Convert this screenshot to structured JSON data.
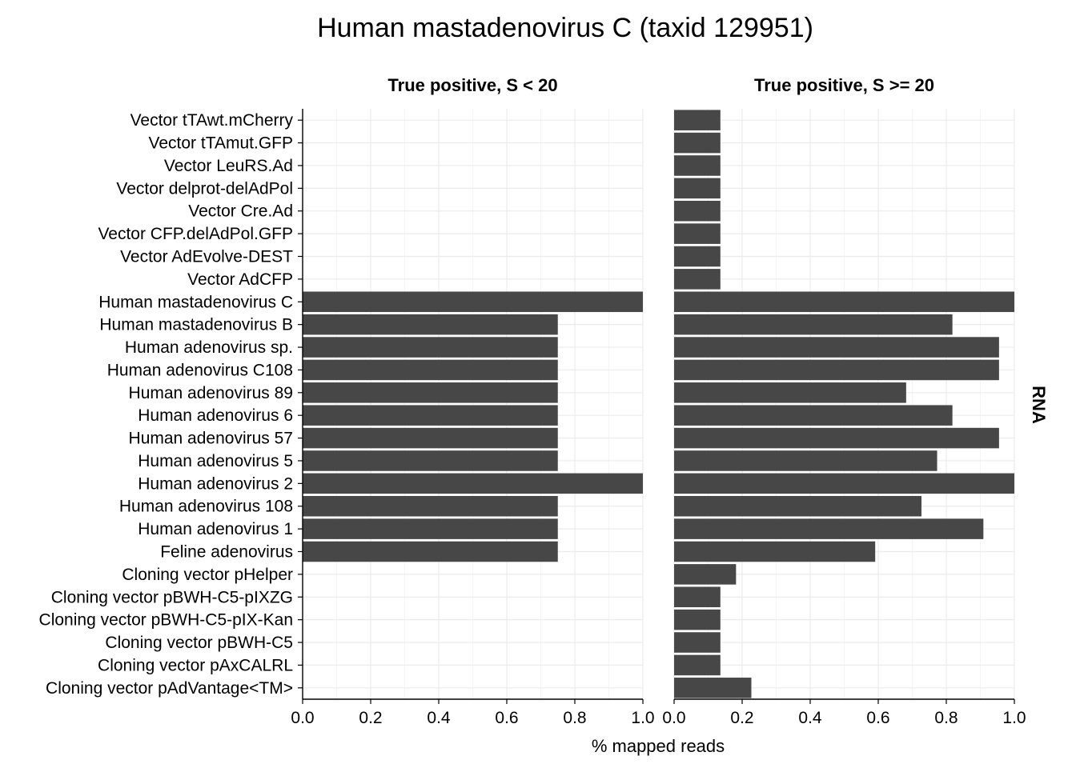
{
  "chart_data": {
    "type": "bar",
    "orientation": "horizontal",
    "title": "Human mastadenovirus C (taxid 129951)",
    "xlabel": "% mapped reads",
    "ylabel": "",
    "strip_label": "RNA",
    "xlim": [
      0,
      1
    ],
    "x_ticks": [
      "0.0",
      "0.2",
      "0.4",
      "0.6",
      "0.8",
      "1.0"
    ],
    "grid": true,
    "categories": [
      "Vector tTAwt.mCherry",
      "Vector tTAmut.GFP",
      "Vector LeuRS.Ad",
      "Vector delprot-delAdPol",
      "Vector Cre.Ad",
      "Vector CFP.delAdPol.GFP",
      "Vector AdEvolve-DEST",
      "Vector AdCFP",
      "Human mastadenovirus C",
      "Human mastadenovirus B",
      "Human adenovirus sp.",
      "Human adenovirus C108",
      "Human adenovirus 89",
      "Human adenovirus 6",
      "Human adenovirus 57",
      "Human adenovirus 5",
      "Human adenovirus 2",
      "Human adenovirus 108",
      "Human adenovirus 1",
      "Feline adenovirus",
      "Cloning vector pHelper",
      "Cloning vector pBWH-C5-pIXZG",
      "Cloning vector pBWH-C5-pIX-Kan",
      "Cloning vector pBWH-C5",
      "Cloning vector pAxCALRL",
      "Cloning vector pAdVantage<TM>"
    ],
    "series": [
      {
        "name": "True positive, S < 20",
        "values": [
          0,
          0,
          0,
          0,
          0,
          0,
          0,
          0,
          1.0,
          0.75,
          0.75,
          0.75,
          0.75,
          0.75,
          0.75,
          0.75,
          1.0,
          0.75,
          0.75,
          0.75,
          0,
          0,
          0,
          0,
          0,
          0
        ]
      },
      {
        "name": "True positive, S >= 20",
        "values": [
          0.136,
          0.136,
          0.136,
          0.136,
          0.136,
          0.136,
          0.136,
          0.136,
          1.0,
          0.818,
          0.955,
          0.955,
          0.682,
          0.818,
          0.955,
          0.773,
          1.0,
          0.727,
          0.909,
          0.591,
          0.182,
          0.136,
          0.136,
          0.136,
          0.136,
          0.227
        ]
      }
    ],
    "bar_color": "#474747"
  }
}
